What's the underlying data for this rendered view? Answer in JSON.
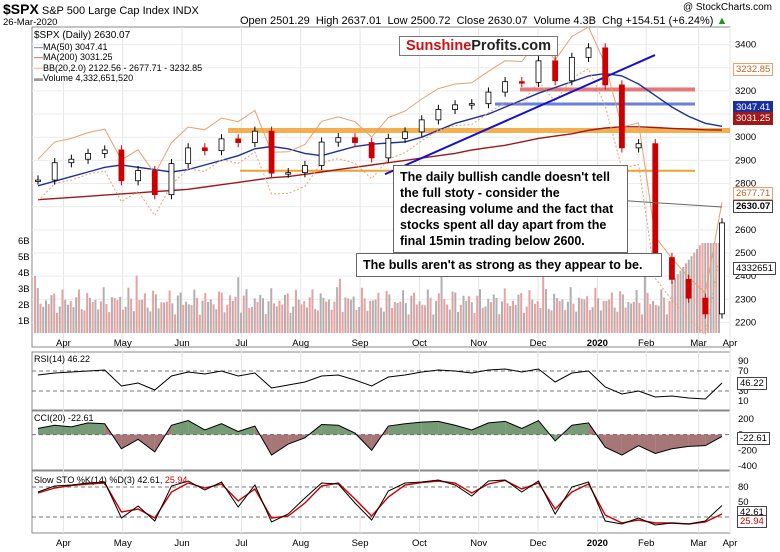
{
  "header": {
    "symbol": "$SPX",
    "name": "S&P 500 Large Cap Index",
    "exchange": "INDX",
    "watermark": "@ StockCharts.com",
    "date": "26-Mar-2020",
    "open": "Open 2501.29",
    "high": "High 2637.01",
    "low": "Low 2500.72",
    "close": "Close 2630.07",
    "volume": "Volume 4.3B",
    "chg": "Chg +154.51 (+6.24%)",
    "chg_arrow": "▲"
  },
  "logo": {
    "part1": "Sunshine",
    "part2": "Profits",
    "part3": ".com"
  },
  "legend": {
    "price": "$SPX (Daily) 2630.07",
    "ma50": "MA(50) 3047.41",
    "ma200": "MA(200) 3031.25",
    "bb": "BB(20,2.0) 2122.56 - 2677.71 - 3232.85",
    "volume": "Volume 4,332,651,520"
  },
  "annotations": {
    "note1": "The daily bullish candle doesn't tell the full stoty - consider the decreasing volume and the fact that stocks spent all day apart from the final 15min trading below 2600.",
    "note2": "The bulls aren't as strong as they appear to be."
  },
  "price_tags": {
    "bb_upper": "3232.85",
    "ma50": "3047.41",
    "ma200": "3031.25",
    "bb_mid": "2677.71",
    "close": "2630.07",
    "volume": "4332651"
  },
  "indicators": {
    "rsi_label": "RSI(14) 46.22",
    "rsi_tag": "46.22",
    "cci_label": "CCI(20) -22.61",
    "cci_tag": "-22.61",
    "sto_label": "Slow STO %K(14) %D(3) 42.61,",
    "sto_d": "25.94",
    "sto_tag1": "42.61",
    "sto_tag2": "25.94"
  },
  "colors": {
    "up": "#000000",
    "down": "#cc0000",
    "ma50": "#1c2fa0",
    "ma200": "#a01818",
    "bb": "#e8a070",
    "trend": "#1010d0",
    "resistance": "#f0a030",
    "support_red": "#e06060",
    "support_blue": "#6a80e0",
    "vol_up": "#b0b0b0",
    "vol_down": "#e8a0a0",
    "cci_pos": "#4a7a4a",
    "cci_neg": "#8a4a4a"
  },
  "chart_data": [
    {
      "type": "candlestick",
      "title": "$SPX (Daily)",
      "x": [
        "2019-03-27",
        "2019-04-05",
        "2019-04-15",
        "2019-04-25",
        "2019-05-03",
        "2019-05-13",
        "2019-05-22",
        "2019-05-31",
        "2019-06-10",
        "2019-06-20",
        "2019-06-28",
        "2019-07-10",
        "2019-07-19",
        "2019-07-26",
        "2019-08-05",
        "2019-08-15",
        "2019-08-26",
        "2019-09-06",
        "2019-09-16",
        "2019-09-26",
        "2019-10-03",
        "2019-10-15",
        "2019-10-25",
        "2019-11-05",
        "2019-11-15",
        "2019-11-26",
        "2019-12-06",
        "2019-12-17",
        "2019-12-27",
        "2020-01-07",
        "2020-01-17",
        "2020-01-27",
        "2020-02-06",
        "2020-02-19",
        "2020-02-24",
        "2020-02-28",
        "2020-03-06",
        "2020-03-12",
        "2020-03-16",
        "2020-03-20",
        "2020-03-23",
        "2020-03-26"
      ],
      "close": [
        2815,
        2890,
        2905,
        2930,
        2945,
        2812,
        2856,
        2752,
        2886,
        2954,
        2942,
        2993,
        2977,
        3026,
        2845,
        2847,
        2878,
        2979,
        2998,
        2977,
        2911,
        2995,
        3023,
        3075,
        3120,
        3140,
        3145,
        3195,
        3240,
        3237,
        3330,
        3244,
        3345,
        3386,
        3226,
        2954,
        2972,
        2480,
        2386,
        2305,
        2237,
        2630
      ],
      "ylim": [
        2150,
        3420
      ],
      "y_ticks": [
        2200,
        2300,
        2400,
        2500,
        2600,
        2700,
        2800,
        2900,
        3000,
        3100,
        3200,
        3300,
        3400
      ],
      "volume_ticks": [
        "1B",
        "2B",
        "3B",
        "4B",
        "5B",
        "6B"
      ],
      "x_tick_labels": [
        "Apr",
        "May",
        "Jun",
        "Jul",
        "Aug",
        "Sep",
        "Oct",
        "Nov",
        "Dec",
        "2020",
        "Feb",
        "Mar",
        "Apr"
      ],
      "series": [
        {
          "name": "MA(50)",
          "values": [
            2790,
            2810,
            2830,
            2850,
            2870,
            2880,
            2870,
            2860,
            2850,
            2860,
            2880,
            2900,
            2920,
            2950,
            2960,
            2950,
            2930,
            2920,
            2940,
            2960,
            2970,
            2975,
            2980,
            3000,
            3030,
            3060,
            3080,
            3100,
            3130,
            3160,
            3190,
            3215,
            3240,
            3265,
            3275,
            3265,
            3230,
            3180,
            3130,
            3090,
            3060,
            3047
          ]
        },
        {
          "name": "MA(200)",
          "values": [
            2730,
            2735,
            2740,
            2745,
            2750,
            2755,
            2760,
            2765,
            2770,
            2775,
            2785,
            2795,
            2805,
            2815,
            2825,
            2830,
            2840,
            2850,
            2860,
            2870,
            2880,
            2890,
            2900,
            2910,
            2920,
            2930,
            2945,
            2955,
            2965,
            2980,
            2995,
            3005,
            3015,
            3030,
            3040,
            3045,
            3045,
            3042,
            3038,
            3035,
            3032,
            3031
          ]
        }
      ]
    },
    {
      "type": "line",
      "title": "RSI(14)",
      "y_ticks": [
        10,
        30,
        50,
        70,
        90
      ],
      "values": [
        62,
        66,
        68,
        70,
        72,
        40,
        46,
        32,
        60,
        68,
        64,
        70,
        60,
        66,
        36,
        42,
        48,
        60,
        62,
        52,
        40,
        58,
        62,
        68,
        72,
        70,
        66,
        72,
        74,
        68,
        74,
        48,
        66,
        70,
        38,
        24,
        30,
        18,
        20,
        16,
        14,
        46
      ]
    },
    {
      "type": "area",
      "title": "CCI(20)",
      "y_ticks": [
        200,
        0,
        -200,
        -400
      ],
      "values": [
        80,
        120,
        100,
        150,
        140,
        -180,
        -60,
        -220,
        120,
        180,
        60,
        140,
        40,
        110,
        -260,
        -120,
        -40,
        130,
        120,
        20,
        -200,
        110,
        140,
        160,
        170,
        120,
        60,
        150,
        170,
        80,
        180,
        -80,
        120,
        150,
        -160,
        -260,
        -140,
        -240,
        -180,
        -150,
        -140,
        -23
      ]
    },
    {
      "type": "line",
      "title": "Slow STO %K(14) %D(3)",
      "y_ticks": [
        20,
        50,
        80
      ],
      "series": [
        {
          "name": "%K",
          "values": [
            70,
            82,
            84,
            88,
            90,
            18,
            42,
            12,
            82,
            92,
            74,
            90,
            40,
            84,
            10,
            26,
            58,
            88,
            86,
            48,
            14,
            72,
            88,
            90,
            94,
            84,
            62,
            92,
            94,
            70,
            92,
            26,
            80,
            90,
            12,
            6,
            18,
            4,
            8,
            6,
            12,
            43
          ]
        },
        {
          "name": "%D",
          "values": [
            68,
            78,
            83,
            86,
            88,
            30,
            36,
            18,
            70,
            88,
            78,
            86,
            52,
            76,
            18,
            22,
            48,
            82,
            88,
            56,
            22,
            60,
            84,
            89,
            92,
            88,
            68,
            86,
            93,
            76,
            88,
            36,
            70,
            86,
            24,
            8,
            14,
            8,
            8,
            6,
            10,
            26
          ]
        }
      ]
    }
  ]
}
